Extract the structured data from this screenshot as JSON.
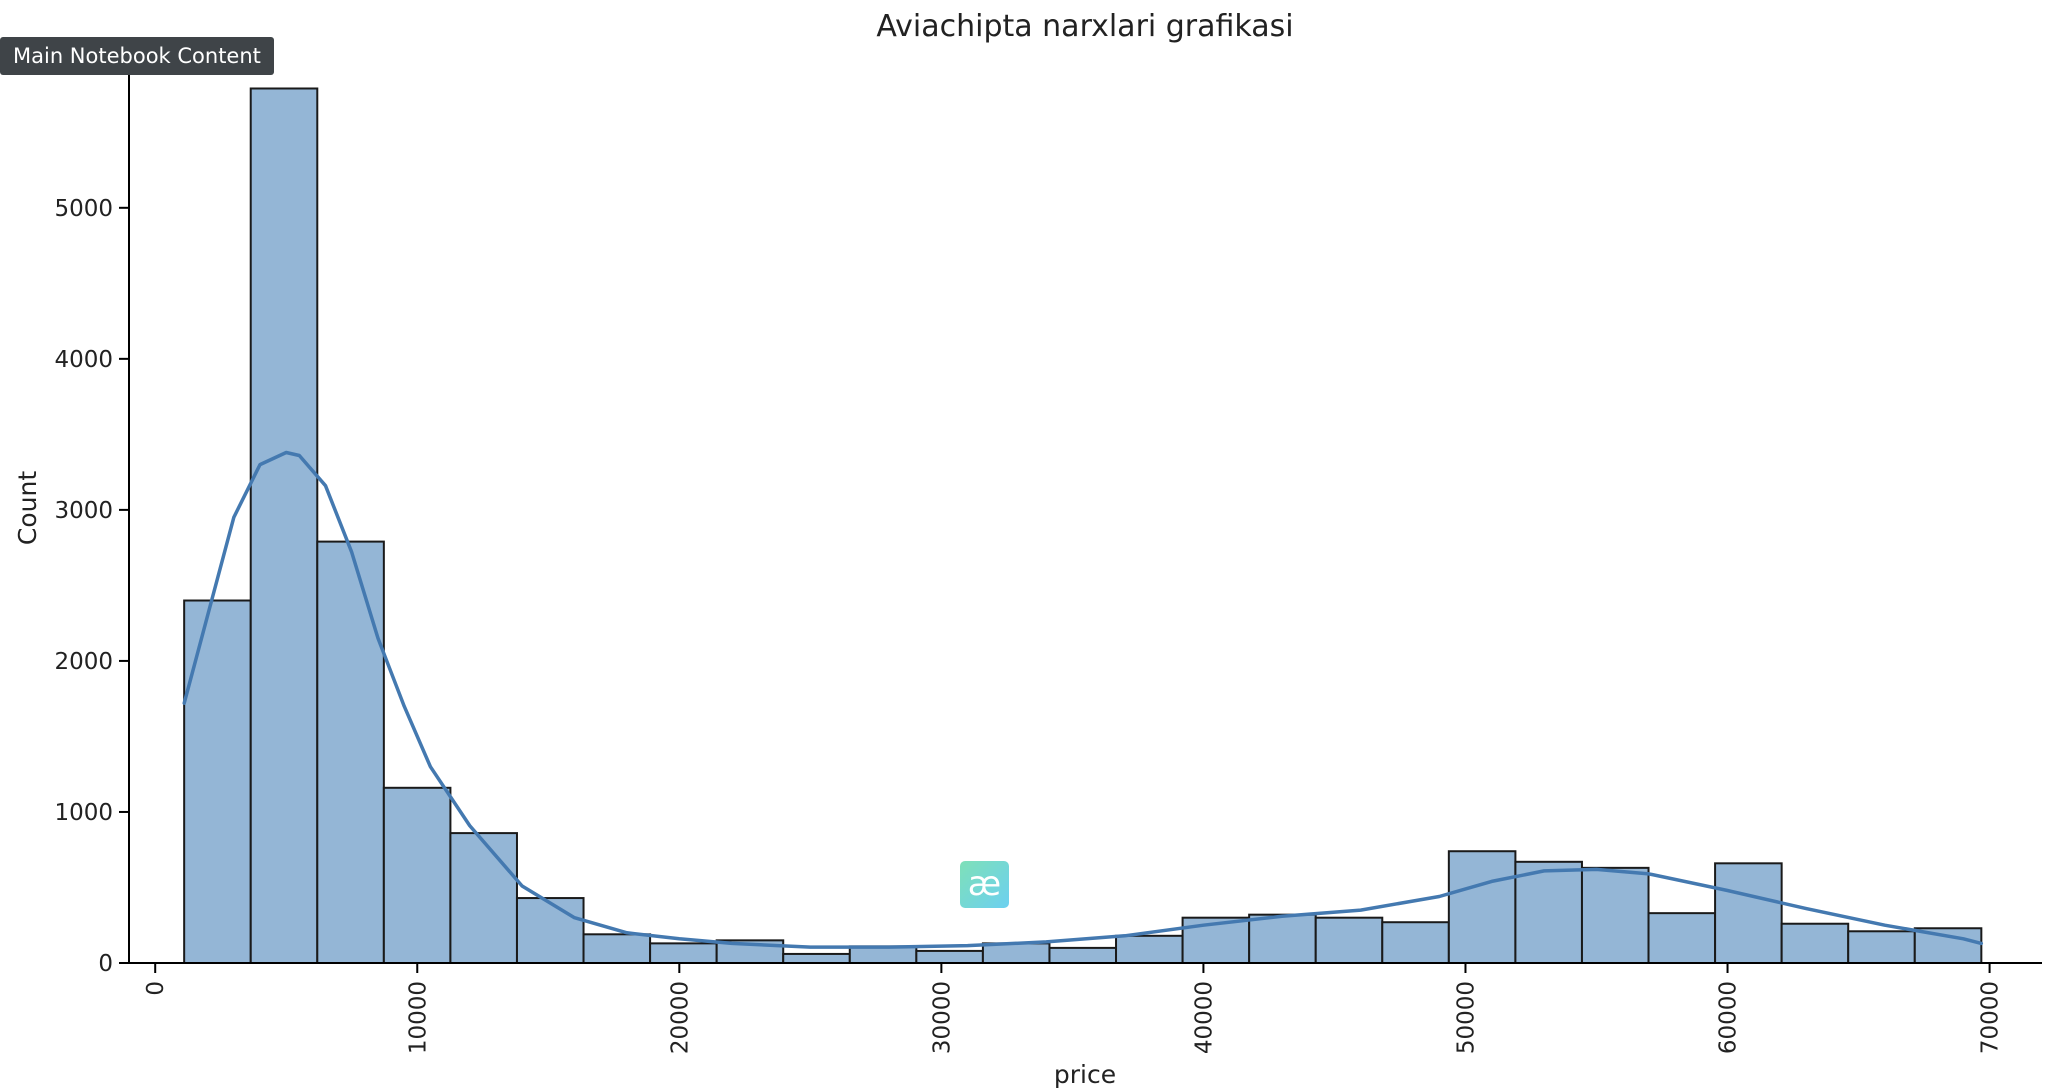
{
  "overlay": {
    "tooltip_text": "Main Notebook Content",
    "logo_glyph": "æ"
  },
  "colors": {
    "bar_fill": "#94b6d6",
    "bar_edge": "#1a1a1a",
    "kde_line": "#4479b0",
    "axis": "#000000",
    "text": "#222222"
  },
  "chart_data": {
    "type": "bar",
    "subtype": "histogram-with-kde",
    "title": "Aviachipta narxlari grafikasi",
    "xlabel": "price",
    "ylabel": "Count",
    "xlim": [
      -1000,
      72000
    ],
    "ylim": [
      0,
      5780
    ],
    "grid": false,
    "x_tick_labels_rotated": true,
    "x_ticks": [
      0,
      10000,
      20000,
      30000,
      40000,
      50000,
      60000,
      70000
    ],
    "y_ticks": [
      0,
      1000,
      2000,
      3000,
      4000,
      5000
    ],
    "bins": [
      {
        "x0": 1105,
        "x1": 3645,
        "count": 2400
      },
      {
        "x0": 3645,
        "x1": 6185,
        "count": 5790
      },
      {
        "x0": 6185,
        "x1": 8725,
        "count": 2790
      },
      {
        "x0": 8725,
        "x1": 11265,
        "count": 1160
      },
      {
        "x0": 11265,
        "x1": 13805,
        "count": 860
      },
      {
        "x0": 13805,
        "x1": 16345,
        "count": 430
      },
      {
        "x0": 16345,
        "x1": 18885,
        "count": 190
      },
      {
        "x0": 18885,
        "x1": 21425,
        "count": 130
      },
      {
        "x0": 21425,
        "x1": 23965,
        "count": 150
      },
      {
        "x0": 23965,
        "x1": 26505,
        "count": 60
      },
      {
        "x0": 26505,
        "x1": 29045,
        "count": 110
      },
      {
        "x0": 29045,
        "x1": 31585,
        "count": 80
      },
      {
        "x0": 31585,
        "x1": 34125,
        "count": 130
      },
      {
        "x0": 34125,
        "x1": 36665,
        "count": 100
      },
      {
        "x0": 36665,
        "x1": 39205,
        "count": 180
      },
      {
        "x0": 39205,
        "x1": 41745,
        "count": 300
      },
      {
        "x0": 41745,
        "x1": 44285,
        "count": 320
      },
      {
        "x0": 44285,
        "x1": 46825,
        "count": 300
      },
      {
        "x0": 46825,
        "x1": 49365,
        "count": 270
      },
      {
        "x0": 49365,
        "x1": 51905,
        "count": 740
      },
      {
        "x0": 51905,
        "x1": 54445,
        "count": 670
      },
      {
        "x0": 54445,
        "x1": 56985,
        "count": 630
      },
      {
        "x0": 56985,
        "x1": 59525,
        "count": 330
      },
      {
        "x0": 59525,
        "x1": 62065,
        "count": 660
      },
      {
        "x0": 62065,
        "x1": 64605,
        "count": 260
      },
      {
        "x0": 64605,
        "x1": 67145,
        "count": 210
      },
      {
        "x0": 67145,
        "x1": 69685,
        "count": 230
      }
    ],
    "kde": {
      "x": [
        1105,
        2000,
        3000,
        4000,
        5000,
        5500,
        6500,
        7500,
        8500,
        9500,
        10500,
        12000,
        14000,
        16000,
        18000,
        20000,
        22000,
        25000,
        28000,
        31000,
        34000,
        37000,
        40000,
        43000,
        46000,
        49000,
        51000,
        53000,
        55000,
        57000,
        60000,
        63000,
        66000,
        69000,
        69685
      ],
      "y": [
        1720,
        2300,
        2950,
        3300,
        3380,
        3360,
        3160,
        2720,
        2150,
        1700,
        1300,
        910,
        510,
        300,
        200,
        160,
        130,
        105,
        105,
        115,
        140,
        180,
        250,
        310,
        350,
        440,
        540,
        610,
        620,
        590,
        480,
        360,
        250,
        160,
        130
      ]
    }
  }
}
